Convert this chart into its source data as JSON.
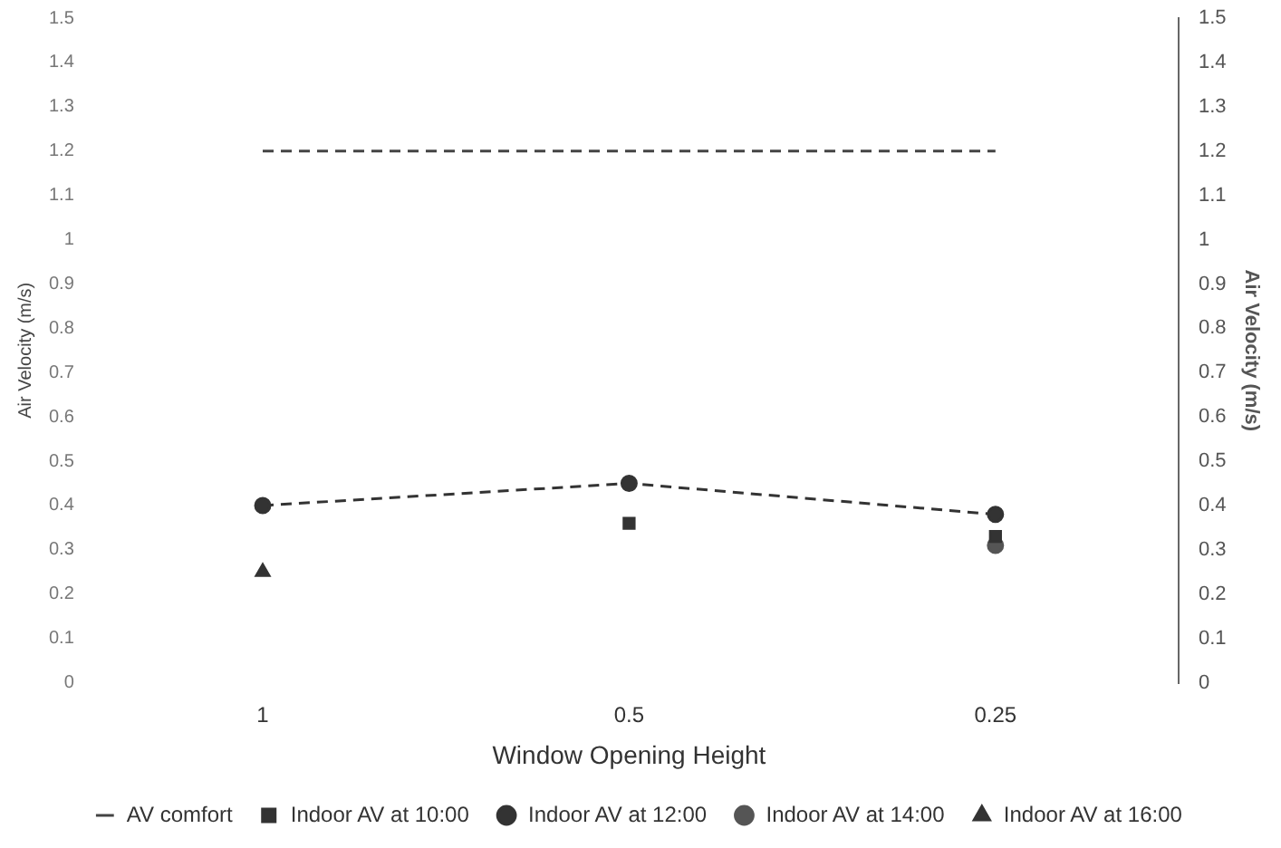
{
  "chart_data": {
    "type": "line",
    "xlabel": "Window Opening Height",
    "ylabel": "Air Velocity (m/s)",
    "y2label": "Air Velocity (m/s)",
    "categories": [
      "1",
      "0.5",
      "0.25"
    ],
    "series": [
      {
        "name": "AV comfort",
        "color": "#444444",
        "values": [
          1.2,
          1.2,
          1.2
        ],
        "marker": "none",
        "line_style": "dashed"
      },
      {
        "name": "Indoor AV at 10:00",
        "type": "scatter",
        "color": "#333333",
        "values": [
          null,
          0.36,
          0.33
        ],
        "marker": "square"
      },
      {
        "name": "Indoor AV at 12:00",
        "color": "#333333",
        "values": [
          0.4,
          0.45,
          0.38
        ],
        "marker": "circle",
        "line_style": "dashed"
      },
      {
        "name": "Indoor AV at 14:00",
        "type": "scatter",
        "color": "#555555",
        "values": [
          null,
          null,
          0.31
        ],
        "marker": "circle"
      },
      {
        "name": "Indoor AV at 16:00",
        "type": "scatter",
        "color": "#333333",
        "values": [
          0.25,
          null,
          null
        ],
        "marker": "triangle"
      }
    ],
    "ylim": [
      0,
      1.5
    ],
    "yticks": [
      0,
      0.1,
      0.2,
      0.3,
      0.4,
      0.5,
      0.6,
      0.7,
      0.8,
      0.9,
      1,
      1.1,
      1.2,
      1.3,
      1.4,
      1.5
    ],
    "y2lim": [
      0,
      1.5
    ],
    "y2ticks": [
      0,
      0.1,
      0.2,
      0.3,
      0.4,
      0.5,
      0.6,
      0.7,
      0.8,
      0.9,
      1,
      1.1,
      1.2,
      1.3,
      1.4,
      1.5
    ],
    "grid": false,
    "legend": "bottom"
  }
}
